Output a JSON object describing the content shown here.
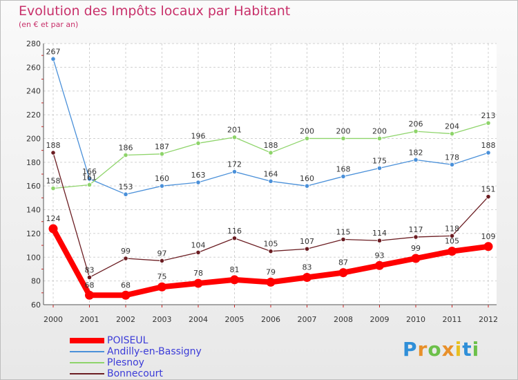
{
  "chart_data": {
    "type": "line",
    "title": "Evolution des Impôts locaux par Habitant",
    "subtitle": "(en € et par an)",
    "xlabel": "",
    "ylabel": "",
    "ylim": [
      60,
      280
    ],
    "yticks": [
      60,
      80,
      100,
      120,
      140,
      160,
      180,
      200,
      220,
      240,
      260,
      280
    ],
    "categories": [
      "2000",
      "2001",
      "2002",
      "2003",
      "2004",
      "2005",
      "2006",
      "2007",
      "2008",
      "2009",
      "2010",
      "2011",
      "2012"
    ],
    "legend_position": "bottom-left",
    "series": [
      {
        "name": "Andilly-en-Bassigny",
        "color": "#4a90d9",
        "bold": false,
        "values": [
          267,
          166,
          153,
          160,
          163,
          172,
          164,
          160,
          168,
          175,
          182,
          178,
          188
        ],
        "labels": [
          "267",
          "166",
          "153",
          "160",
          "163",
          "172",
          "164",
          "160",
          "168",
          "175",
          "182",
          "178",
          "188"
        ]
      },
      {
        "name": "Plesnoy",
        "color": "#8ed46a",
        "bold": false,
        "values": [
          158,
          161,
          186,
          187,
          196,
          201,
          188,
          200,
          200,
          200,
          206,
          204,
          213
        ],
        "labels": [
          "158",
          "161",
          "186",
          "187",
          "196",
          "201",
          "188",
          "200",
          "200",
          "200",
          "206",
          "204",
          "213"
        ]
      },
      {
        "name": "Bonnecourt",
        "color": "#6b1d22",
        "bold": false,
        "values": [
          188,
          83,
          99,
          97,
          104,
          116,
          105,
          107,
          115,
          114,
          117,
          118,
          151
        ],
        "labels": [
          "188",
          "83",
          "99",
          "97",
          "104",
          "116",
          "105",
          "107",
          "115",
          "114",
          "117",
          "118",
          "151"
        ]
      },
      {
        "name": "POISEUL",
        "color": "#ff0000",
        "bold": true,
        "values": [
          124,
          68,
          68,
          75,
          78,
          81,
          79,
          83,
          87,
          93,
          99,
          105,
          109
        ],
        "labels": [
          "124",
          "68",
          "68",
          "75",
          "78",
          "81",
          "79",
          "83",
          "87",
          "93",
          "99",
          "105",
          "109"
        ]
      }
    ],
    "legend_order": [
      "POISEUL",
      "Andilly-en-Bassigny",
      "Plesnoy",
      "Bonnecourt"
    ]
  },
  "brand": {
    "letters": [
      "P",
      "r",
      "o",
      "x",
      "i",
      "t",
      "i"
    ],
    "colors": [
      "#2f8fd8",
      "#e8902a",
      "#6cc04a",
      "#e8902a",
      "#e8c020",
      "#2f8fd8",
      "#6cc04a"
    ]
  }
}
